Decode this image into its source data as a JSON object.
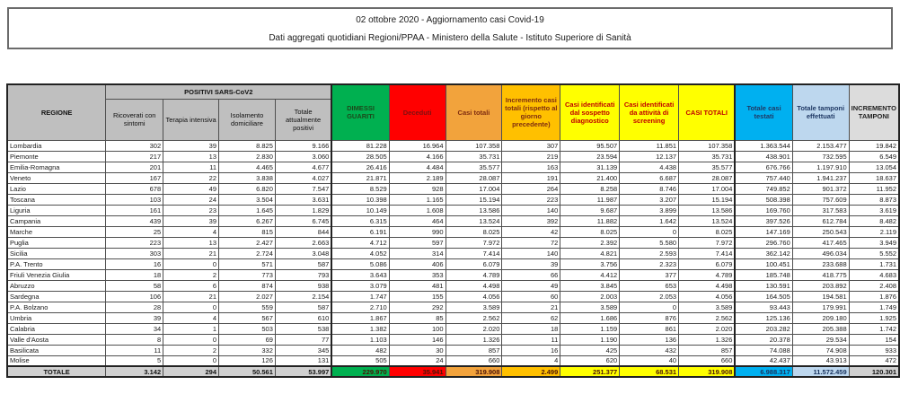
{
  "header": {
    "line1": "02 ottobre 2020 - Aggiornamento casi Covid-19",
    "line2": "Dati aggregati quotidiani Regioni/PPAA - Ministero della Salute - Istituto Superiore di Sanità"
  },
  "colors": {
    "header_gray": "#BFBFBF",
    "green": "#00B050",
    "red": "#FF0000",
    "orange_dark": "#F2A33C",
    "orange": "#FFC000",
    "yellow": "#FFFF00",
    "blue": "#00B0F0",
    "pale_blue": "#BDD7EE",
    "light_gray": "#DCDCDC",
    "total_row_gray": "#D0D0D0"
  },
  "table": {
    "region_header": "REGIONE",
    "group_header": "POSITIVI SARS-CoV2",
    "sub_headers": [
      "Ricoverati con sintomi",
      "Terapia intensiva",
      "Isolamento domiciliare",
      "Totale attualmente positivi"
    ],
    "col_headers": [
      {
        "label": "DIMESSI GUARITI",
        "color": "green"
      },
      {
        "label": "Deceduti",
        "color": "red"
      },
      {
        "label": "Casi totali",
        "color": "orange1"
      },
      {
        "label": "Incremento casi totali (rispetto al giorno precedente)",
        "color": "orange2"
      },
      {
        "label": "Casi identificati dal sospetto diagnostico",
        "color": "yellow"
      },
      {
        "label": "Casi identificati da attività di screening",
        "color": "yellow"
      },
      {
        "label": "CASI TOTALI",
        "color": "yellow"
      },
      {
        "label": "Totale casi testati",
        "color": "blue"
      },
      {
        "label": "Totale tamponi effettuati",
        "color": "paleblue"
      },
      {
        "label": "INCREMENTO TAMPONI",
        "color": "lgray"
      }
    ],
    "rows": [
      {
        "regione": "Lombardia",
        "values": [
          "302",
          "39",
          "8.825",
          "9.166",
          "81.228",
          "16.964",
          "107.358",
          "307",
          "95.507",
          "11.851",
          "107.358",
          "1.363.544",
          "2.153.477",
          "19.842"
        ]
      },
      {
        "regione": "Piemonte",
        "values": [
          "217",
          "13",
          "2.830",
          "3.060",
          "28.505",
          "4.166",
          "35.731",
          "219",
          "23.594",
          "12.137",
          "35.731",
          "438.901",
          "732.595",
          "6.549"
        ]
      },
      {
        "regione": "Emilia-Romagna",
        "values": [
          "201",
          "11",
          "4.465",
          "4.677",
          "26.416",
          "4.484",
          "35.577",
          "163",
          "31.139",
          "4.438",
          "35.577",
          "676.766",
          "1.197.910",
          "13.054"
        ]
      },
      {
        "regione": "Veneto",
        "values": [
          "167",
          "22",
          "3.838",
          "4.027",
          "21.871",
          "2.189",
          "28.087",
          "191",
          "21.400",
          "6.687",
          "28.087",
          "757.440",
          "1.941.237",
          "18.637"
        ]
      },
      {
        "regione": "Lazio",
        "values": [
          "678",
          "49",
          "6.820",
          "7.547",
          "8.529",
          "928",
          "17.004",
          "264",
          "8.258",
          "8.746",
          "17.004",
          "749.852",
          "901.372",
          "11.952"
        ]
      },
      {
        "regione": "Toscana",
        "values": [
          "103",
          "24",
          "3.504",
          "3.631",
          "10.398",
          "1.165",
          "15.194",
          "223",
          "11.987",
          "3.207",
          "15.194",
          "508.398",
          "757.609",
          "8.873"
        ]
      },
      {
        "regione": "Liguria",
        "values": [
          "161",
          "23",
          "1.645",
          "1.829",
          "10.149",
          "1.608",
          "13.586",
          "140",
          "9.687",
          "3.899",
          "13.586",
          "169.760",
          "317.583",
          "3.619"
        ]
      },
      {
        "regione": "Campania",
        "values": [
          "439",
          "39",
          "6.267",
          "6.745",
          "6.315",
          "464",
          "13.524",
          "392",
          "11.882",
          "1.642",
          "13.524",
          "397.526",
          "612.784",
          "8.482"
        ]
      },
      {
        "regione": "Marche",
        "values": [
          "25",
          "4",
          "815",
          "844",
          "6.191",
          "990",
          "8.025",
          "42",
          "8.025",
          "0",
          "8.025",
          "147.169",
          "250.543",
          "2.119"
        ]
      },
      {
        "regione": "Puglia",
        "values": [
          "223",
          "13",
          "2.427",
          "2.663",
          "4.712",
          "597",
          "7.972",
          "72",
          "2.392",
          "5.580",
          "7.972",
          "296.760",
          "417.465",
          "3.949"
        ]
      },
      {
        "regione": "Sicilia",
        "values": [
          "303",
          "21",
          "2.724",
          "3.048",
          "4.052",
          "314",
          "7.414",
          "140",
          "4.821",
          "2.593",
          "7.414",
          "362.142",
          "496.034",
          "5.552"
        ]
      },
      {
        "regione": "P.A. Trento",
        "values": [
          "16",
          "0",
          "571",
          "587",
          "5.086",
          "406",
          "6.079",
          "39",
          "3.756",
          "2.323",
          "6.079",
          "100.451",
          "233.688",
          "1.731"
        ]
      },
      {
        "regione": "Friuli Venezia Giulia",
        "values": [
          "18",
          "2",
          "773",
          "793",
          "3.643",
          "353",
          "4.789",
          "66",
          "4.412",
          "377",
          "4.789",
          "185.748",
          "418.775",
          "4.683"
        ]
      },
      {
        "regione": "Abruzzo",
        "values": [
          "58",
          "6",
          "874",
          "938",
          "3.079",
          "481",
          "4.498",
          "49",
          "3.845",
          "653",
          "4.498",
          "130.591",
          "203.892",
          "2.408"
        ]
      },
      {
        "regione": "Sardegna",
        "values": [
          "106",
          "21",
          "2.027",
          "2.154",
          "1.747",
          "155",
          "4.056",
          "60",
          "2.003",
          "2.053",
          "4.056",
          "164.505",
          "194.581",
          "1.876"
        ]
      },
      {
        "regione": "P.A. Bolzano",
        "values": [
          "28",
          "0",
          "559",
          "587",
          "2.710",
          "292",
          "3.589",
          "21",
          "3.589",
          "0",
          "3.589",
          "93.443",
          "179.991",
          "1.749"
        ]
      },
      {
        "regione": "Umbria",
        "values": [
          "39",
          "4",
          "567",
          "610",
          "1.867",
          "85",
          "2.562",
          "62",
          "1.686",
          "876",
          "2.562",
          "125.136",
          "209.180",
          "1.925"
        ]
      },
      {
        "regione": "Calabria",
        "values": [
          "34",
          "1",
          "503",
          "538",
          "1.382",
          "100",
          "2.020",
          "18",
          "1.159",
          "861",
          "2.020",
          "203.282",
          "205.388",
          "1.742"
        ]
      },
      {
        "regione": "Valle d'Aosta",
        "values": [
          "8",
          "0",
          "69",
          "77",
          "1.103",
          "146",
          "1.326",
          "11",
          "1.190",
          "136",
          "1.326",
          "20.378",
          "29.534",
          "154"
        ]
      },
      {
        "regione": "Basilicata",
        "values": [
          "11",
          "2",
          "332",
          "345",
          "482",
          "30",
          "857",
          "16",
          "425",
          "432",
          "857",
          "74.088",
          "74.908",
          "933"
        ]
      },
      {
        "regione": "Molise",
        "values": [
          "5",
          "0",
          "126",
          "131",
          "505",
          "24",
          "660",
          "4",
          "620",
          "40",
          "660",
          "42.437",
          "43.913",
          "472"
        ]
      }
    ],
    "totale": {
      "label": "TOTALE",
      "values": [
        "3.142",
        "294",
        "50.561",
        "53.997",
        "229.970",
        "35.941",
        "319.908",
        "2.499",
        "251.377",
        "68.531",
        "319.908",
        "6.988.317",
        "11.572.459",
        "120.301"
      ],
      "value_colors": [
        "totgray",
        "totgray",
        "totgray",
        "totgray",
        "green",
        "red",
        "orange1",
        "orange2",
        "yellow",
        "yellow",
        "yellow",
        "blue",
        "paleblue",
        "totgray"
      ]
    }
  }
}
